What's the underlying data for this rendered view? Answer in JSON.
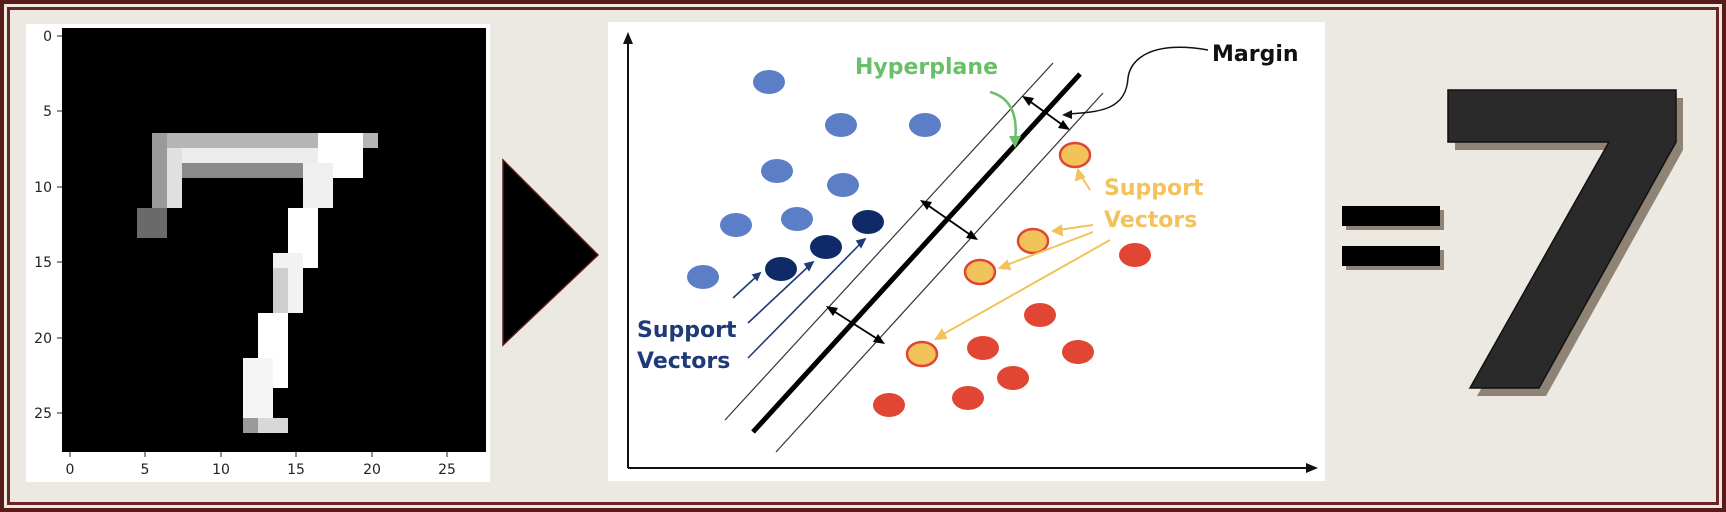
{
  "digit_image": {
    "y_ticks": [
      "0",
      "5",
      "10",
      "15",
      "20",
      "25"
    ],
    "x_ticks": [
      "0",
      "5",
      "10",
      "15",
      "20",
      "25"
    ],
    "pixel_grid_size": 28
  },
  "svm_diagram": {
    "hyperplane_label": "Hyperplane",
    "margin_label": "Margin",
    "support_vectors_label_line1": "Support",
    "support_vectors_label_line2": "Vectors",
    "support_vectors_right_line1": "Support",
    "support_vectors_right_line2": "Vectors",
    "colors": {
      "class_a": "#5b7ec7",
      "class_a_support": "#0f2a66",
      "class_b": "#e04633",
      "class_b_support": "#f2c35a",
      "hyperplane_label": "#6cbf6a",
      "support_left_label": "#1f3a78",
      "support_right_label": "#f2c35a"
    }
  },
  "result": {
    "equals_icon": "equals-sign",
    "digit": "7"
  },
  "arrow_icon": "play-triangle-right"
}
